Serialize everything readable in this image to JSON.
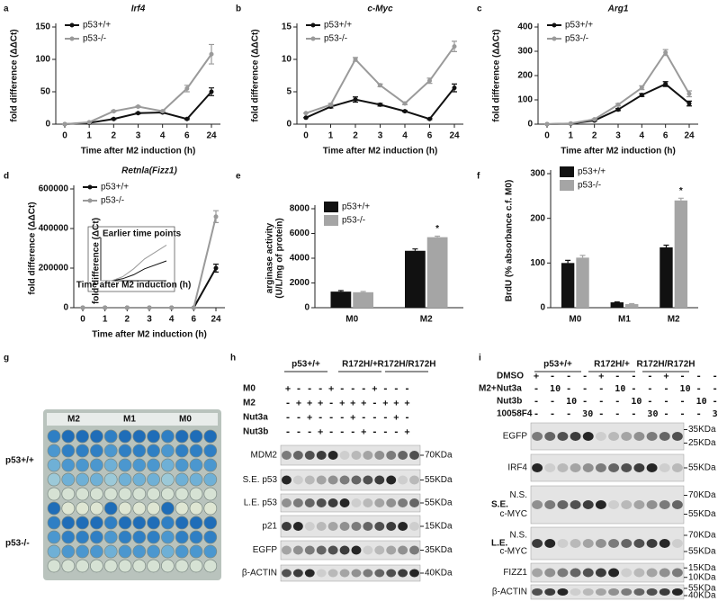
{
  "chart_data": [
    {
      "type": "line",
      "label": "a",
      "title": "Irf4",
      "xlabel": "Time after M2 induction (h)",
      "ylabel": "fold difference (ΔΔCt)",
      "categories": [
        "0",
        "1",
        "2",
        "3",
        "4",
        "6",
        "24"
      ],
      "ylim": [
        0,
        150
      ],
      "yticks": [
        0,
        50,
        100,
        150
      ],
      "legend": "upper left",
      "series": [
        {
          "name": "p53+/+",
          "color": "#111111",
          "values": [
            0,
            2,
            8,
            17,
            18,
            8,
            50
          ],
          "errors": [
            0,
            0,
            1,
            1,
            1,
            1,
            6
          ]
        },
        {
          "name": "p53-/-",
          "color": "#9a9a9a",
          "values": [
            0,
            3,
            20,
            27,
            20,
            55,
            108
          ],
          "errors": [
            0,
            0,
            1,
            1,
            1,
            5,
            15
          ]
        }
      ]
    },
    {
      "type": "line",
      "label": "b",
      "title": "c-Myc",
      "xlabel": "Time after M2 induction (h)",
      "ylabel": "fold difference (ΔΔCt)",
      "categories": [
        "0",
        "1",
        "2",
        "3",
        "4",
        "6",
        "24"
      ],
      "ylim": [
        0,
        15
      ],
      "yticks": [
        0,
        5,
        10,
        15
      ],
      "legend": "upper left",
      "series": [
        {
          "name": "p53+/+",
          "color": "#111111",
          "values": [
            1,
            2.7,
            3.8,
            3,
            2,
            0.8,
            5.6
          ],
          "errors": [
            0,
            0.2,
            0.4,
            0.2,
            0.1,
            0.1,
            0.6
          ]
        },
        {
          "name": "p53-/-",
          "color": "#9a9a9a",
          "values": [
            1.7,
            3,
            10,
            6,
            3.2,
            6.7,
            12
          ],
          "errors": [
            0,
            0.2,
            0.3,
            0.2,
            0.2,
            0.4,
            0.8
          ]
        }
      ]
    },
    {
      "type": "line",
      "label": "c",
      "title": "Arg1",
      "xlabel": "Time after M2 induction (h)",
      "ylabel": "fold difference (ΔΔCt)",
      "categories": [
        "0",
        "1",
        "2",
        "3",
        "4",
        "6",
        "24"
      ],
      "ylim": [
        0,
        400
      ],
      "yticks": [
        0,
        100,
        200,
        300,
        400
      ],
      "legend": "upper left",
      "series": [
        {
          "name": "p53+/+",
          "color": "#111111",
          "values": [
            0,
            2,
            15,
            60,
            120,
            165,
            85
          ],
          "errors": [
            0,
            0,
            2,
            4,
            6,
            10,
            10
          ]
        },
        {
          "name": "p53-/-",
          "color": "#9a9a9a",
          "values": [
            0,
            3,
            20,
            80,
            150,
            295,
            125
          ],
          "errors": [
            0,
            0,
            2,
            5,
            8,
            12,
            12
          ]
        }
      ]
    },
    {
      "type": "line",
      "label": "d",
      "title": "Retnla(Fizz1)",
      "xlabel": "Time after M2 induction (h)",
      "ylabel": "fold difference (ΔΔCt)",
      "categories": [
        "0",
        "1",
        "2",
        "3",
        "4",
        "6",
        "24"
      ],
      "ylim": [
        0,
        600000
      ],
      "yticks": [
        0,
        200000,
        400000,
        600000
      ],
      "legend": "upper left",
      "series": [
        {
          "name": "p53+/+",
          "color": "#111111",
          "values": [
            0,
            0,
            0,
            0,
            0,
            0,
            200000
          ],
          "errors": [
            0,
            0,
            0,
            0,
            0,
            0,
            20000
          ]
        },
        {
          "name": "p53-/-",
          "color": "#9a9a9a",
          "values": [
            0,
            0,
            0,
            0,
            0,
            0,
            460000
          ],
          "errors": [
            0,
            0,
            0,
            0,
            0,
            0,
            30000
          ]
        }
      ]
    },
    {
      "type": "inset",
      "title": "Earlier time points",
      "xlabel": "Time after M2 induction (h)",
      "ylabel": "fold difference (ΔCt)",
      "x": [
        0,
        1,
        2,
        3,
        4,
        6
      ],
      "xlim": [
        0,
        6
      ],
      "ylim": [
        0,
        10
      ],
      "series": [
        {
          "name": "p53+/+",
          "color": "#111111",
          "values": [
            0,
            0,
            0.5,
            1.5,
            3,
            5
          ]
        },
        {
          "name": "p53-/-",
          "color": "#9a9a9a",
          "values": [
            0,
            0,
            1,
            3,
            5.5,
            9
          ]
        }
      ]
    },
    {
      "type": "bar",
      "label": "e",
      "ylabel": [
        "arginase activity",
        "(U/L/mg of protein)"
      ],
      "categories": [
        "M0",
        "M2"
      ],
      "ylim": [
        0,
        8000
      ],
      "yticks": [
        0,
        2000,
        4000,
        6000,
        8000
      ],
      "legend": "upper left",
      "annotations": [
        "*"
      ],
      "series": [
        {
          "name": "p53+/+",
          "color": "#111111",
          "values": [
            1300,
            4600
          ],
          "errors": [
            80,
            150
          ]
        },
        {
          "name": "p53-/-",
          "color": "#a5a5a5",
          "values": [
            1250,
            5700
          ],
          "errors": [
            60,
            80
          ]
        }
      ]
    },
    {
      "type": "bar",
      "label": "f",
      "ylabel": [
        "BrdU (% absorbance c.f. M0)"
      ],
      "categories": [
        "M0",
        "M1",
        "M2"
      ],
      "ylim": [
        0,
        300
      ],
      "yticks": [
        0,
        100,
        200,
        300
      ],
      "legend": "upper left",
      "annotations": [
        "*"
      ],
      "series": [
        {
          "name": "p53+/+",
          "color": "#111111",
          "values": [
            100,
            12,
            135
          ],
          "errors": [
            6,
            1,
            5
          ]
        },
        {
          "name": "p53-/-",
          "color": "#a5a5a5",
          "values": [
            112,
            8,
            240
          ],
          "errors": [
            5,
            1,
            5
          ]
        }
      ]
    }
  ],
  "plate": {
    "label": "g",
    "columns": [
      "M2",
      "M1",
      "M0"
    ],
    "rows": [
      "p53+/+",
      "p53-/-"
    ]
  },
  "blot_h": {
    "label": "h",
    "groups": [
      "p53+/+",
      "R172H/+",
      "R172H/R172H"
    ],
    "conditions": [
      {
        "name": "M0",
        "marks": "+ - - - + - - - + - - -"
      },
      {
        "name": "M2",
        "marks": "- + + + - + + + - + + +"
      },
      {
        "name": "Nut3a",
        "marks": "- - + - - - + - - - + -"
      },
      {
        "name": "Nut3b",
        "marks": "- - - + - - - + - - - +"
      }
    ],
    "blots": [
      {
        "name": "MDM2",
        "sizes": [
          "70KDa"
        ]
      },
      {
        "name": "S.E. p53",
        "sizes": [
          "55KDa"
        ]
      },
      {
        "name": "L.E. p53",
        "sizes": [
          "55KDa"
        ]
      },
      {
        "name": "p21",
        "sizes": [
          "15KDa"
        ]
      },
      {
        "name": "EGFP",
        "sizes": [
          "35KDa"
        ]
      },
      {
        "name": "β-ACTIN",
        "sizes": [
          "40KDa"
        ]
      }
    ]
  },
  "blot_i": {
    "label": "i",
    "groups": [
      "p53+/+",
      "R172H/+",
      "R172H/R172H"
    ],
    "prefix": "M2+",
    "conditions": [
      {
        "name": "DMSO",
        "marks": "+  -  -  -  +  -  -  -  +  -  -  -"
      },
      {
        "name": "Nut3a",
        "marks": "-  10 -  -  -  10 -  -  -  10 -  -"
      },
      {
        "name": "Nut3b",
        "marks": "-  -  10 -  -  -  10 -  -  -  10 -"
      },
      {
        "name": "10058F4",
        "marks": "-  -  -  30 -  -  -  30 -  -  -  30"
      }
    ],
    "blots": [
      {
        "name": "EGFP",
        "sizes": [
          "35KDa",
          "25KDa"
        ]
      },
      {
        "name": "IRF4",
        "sizes": [
          "55KDa"
        ]
      },
      {
        "name": "S.E.",
        "bands": [
          "N.S.",
          "c-MYC"
        ],
        "sizes": [
          "70KDa",
          "55KDa"
        ]
      },
      {
        "name": "L.E.",
        "bands": [
          "N.S.",
          "c-MYC"
        ],
        "sizes": [
          "70KDa",
          "55KDa"
        ]
      },
      {
        "name": "FIZZ1",
        "sizes": [
          "15KDa",
          "10KDa"
        ]
      },
      {
        "name": "β-ACTIN",
        "sizes": [
          "55KDa",
          "40KDa"
        ]
      }
    ]
  }
}
